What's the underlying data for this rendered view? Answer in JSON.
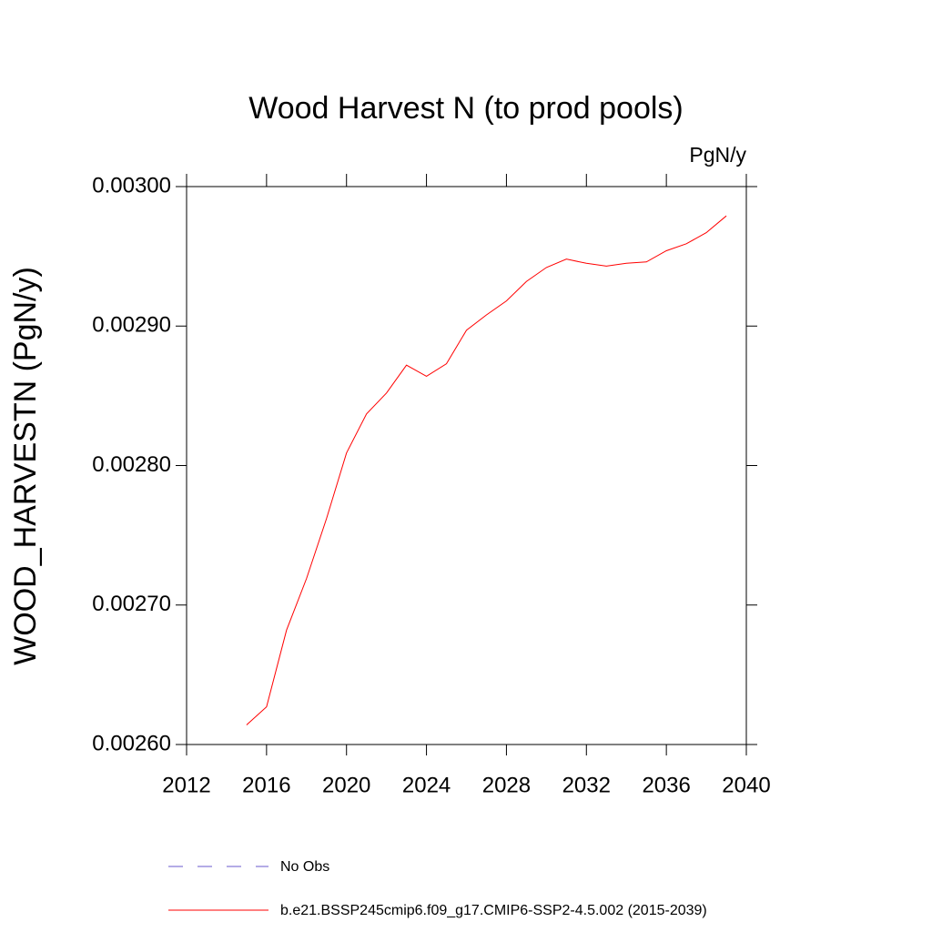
{
  "chart_data": {
    "type": "line",
    "title": "Wood Harvest N (to prod pools)",
    "units": "PgN/y",
    "y_label": "WOOD_HARVESTN  (PgN/y)",
    "x": [
      2015,
      2016,
      2017,
      2018,
      2019,
      2020,
      2021,
      2022,
      2023,
      2024,
      2025,
      2026,
      2027,
      2028,
      2029,
      2030,
      2031,
      2032,
      2033,
      2034,
      2035,
      2036,
      2037,
      2038,
      2039
    ],
    "series": [
      {
        "name": "No Obs",
        "color": "#6a5acd",
        "dashed": true,
        "values": [
          null,
          null,
          null,
          null,
          null,
          null,
          null,
          null,
          null,
          null,
          null,
          null,
          null,
          null,
          null,
          null,
          null,
          null,
          null,
          null,
          null,
          null,
          null,
          null,
          null
        ]
      },
      {
        "name": "b.e21.BSSP245cmip6.f09_g17.CMIP6-SSP2-4.5.002 (2015-2039)",
        "color": "#ff0000",
        "dashed": false,
        "values": [
          0.002614,
          0.002627,
          0.002682,
          0.002719,
          0.002762,
          0.002809,
          0.002837,
          0.002852,
          0.002872,
          0.002864,
          0.002873,
          0.002897,
          0.002908,
          0.002918,
          0.002932,
          0.002942,
          0.002948,
          0.002945,
          0.002943,
          0.002945,
          0.002946,
          0.002954,
          0.002959,
          0.002967,
          0.002979
        ]
      }
    ],
    "xlim": [
      2012,
      2040
    ],
    "xticks": [
      2012,
      2016,
      2020,
      2024,
      2028,
      2032,
      2036,
      2040
    ],
    "ylim": [
      0.0026,
      0.003
    ],
    "yticks": [
      {
        "value": 0.0026,
        "label": "0.00260"
      },
      {
        "value": 0.0027,
        "label": "0.00270"
      },
      {
        "value": 0.0028,
        "label": "0.00280"
      },
      {
        "value": 0.0029,
        "label": "0.00290"
      },
      {
        "value": 0.003,
        "label": "0.00300"
      }
    ]
  }
}
